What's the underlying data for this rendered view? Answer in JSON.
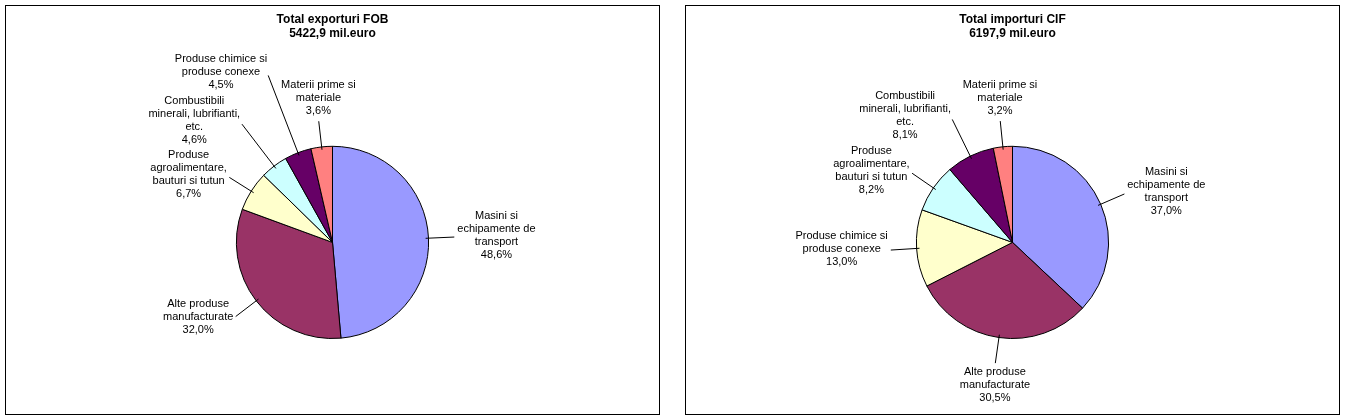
{
  "chart_data": [
    {
      "type": "pie",
      "title": "Total exporturi FOB",
      "subtitle": "5422,9 mil.euro",
      "categories": [
        "Masini si echipamente de transport",
        "Alte produse manufacturate",
        "Produse agroalimentare, bauturi si tutun",
        "Combustibili minerali, lubrifianti, etc.",
        "Produse chimice si produse conexe",
        "Materii prime si materiale"
      ],
      "values": [
        48.6,
        32.0,
        6.7,
        4.6,
        4.5,
        3.6
      ],
      "value_labels": [
        "48,6%",
        "32,0%",
        "6,7%",
        "4,6%",
        "4,5%",
        "3,6%"
      ],
      "colors": [
        "#9999ff",
        "#993366",
        "#ffffcc",
        "#ccffff",
        "#660066",
        "#ff8080"
      ]
    },
    {
      "type": "pie",
      "title": "Total importuri CIF",
      "subtitle": "6197,9 mil.euro",
      "categories": [
        "Masini si echipamente de transport",
        "Alte produse manufacturate",
        "Produse chimice si produse conexe",
        "Produse agroalimentare, bauturi si tutun",
        "Combustibili minerali, lubrifianti, etc.",
        "Materii prime si materiale"
      ],
      "values": [
        37.0,
        30.5,
        13.0,
        8.2,
        8.1,
        3.2
      ],
      "value_labels": [
        "37,0%",
        "30,5%",
        "13,0%",
        "8,2%",
        "8,1%",
        "3,2%"
      ],
      "colors": [
        "#9999ff",
        "#993366",
        "#ffffcc",
        "#ccffff",
        "#660066",
        "#ff8080"
      ]
    }
  ]
}
